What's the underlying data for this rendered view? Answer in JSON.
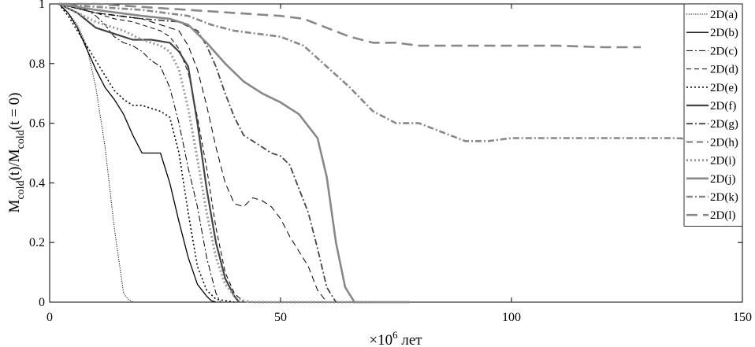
{
  "chart_data": {
    "type": "line",
    "xlabel": {
      "prefix": "×10",
      "sup": "6",
      "suffix": " лет"
    },
    "ylabel": {
      "main": "M",
      "sub1": "cold",
      "mid": "(t)/M",
      "sub2": "cold",
      "tail": "(t = 0)"
    },
    "xlim": [
      0,
      150
    ],
    "ylim": [
      0,
      1
    ],
    "xticks": [
      0,
      50,
      100,
      150
    ],
    "yticks": [
      0,
      0.2,
      0.4,
      0.6,
      0.8,
      1
    ],
    "xtick_labels": [
      "0",
      "50",
      "100",
      "150"
    ],
    "ytick_labels": [
      "0",
      "0.2",
      "0.4",
      "0.6",
      "0.8",
      "1"
    ],
    "grid": false,
    "legend_position": "top-right",
    "series": [
      {
        "name": "2D(a)",
        "color": "#000000",
        "dash": "dotted-fine",
        "width": 1,
        "x": [
          2,
          4,
          6,
          8,
          10,
          12,
          14,
          16,
          17,
          18,
          20,
          30,
          40,
          44
        ],
        "y": [
          1,
          0.97,
          0.93,
          0.86,
          0.72,
          0.52,
          0.25,
          0.03,
          0.01,
          0,
          0,
          0,
          0,
          0
        ]
      },
      {
        "name": "2D(b)",
        "color": "#000000",
        "dash": "solid",
        "width": 1.3,
        "x": [
          2,
          4,
          6,
          8,
          10,
          12,
          14,
          16,
          18,
          20,
          22,
          24,
          26,
          28,
          30,
          32,
          34,
          35,
          36
        ],
        "y": [
          1,
          0.97,
          0.92,
          0.85,
          0.78,
          0.72,
          0.68,
          0.63,
          0.56,
          0.5,
          0.5,
          0.5,
          0.4,
          0.27,
          0.15,
          0.06,
          0.02,
          0.005,
          0
        ]
      },
      {
        "name": "2D(c)",
        "color": "#000000",
        "dash": "dashdot",
        "width": 1,
        "x": [
          2,
          5,
          8,
          10,
          12,
          14,
          16,
          18,
          20,
          22,
          24,
          26,
          28,
          30,
          32,
          34,
          36,
          37
        ],
        "y": [
          1,
          0.99,
          0.98,
          0.96,
          0.93,
          0.89,
          0.87,
          0.86,
          0.84,
          0.81,
          0.79,
          0.72,
          0.6,
          0.45,
          0.32,
          0.15,
          0.03,
          0
        ]
      },
      {
        "name": "2D(d)",
        "color": "#000000",
        "dash": "dashed",
        "width": 1,
        "x": [
          2,
          10,
          14,
          18,
          20,
          22,
          24,
          26,
          28,
          30,
          32,
          34,
          36,
          38,
          40,
          42
        ],
        "y": [
          1,
          0.97,
          0.95,
          0.94,
          0.93,
          0.92,
          0.91,
          0.89,
          0.85,
          0.77,
          0.62,
          0.45,
          0.25,
          0.1,
          0.03,
          0
        ]
      },
      {
        "name": "2D(e)",
        "color": "#000000",
        "dash": "dotted-bold",
        "width": 1.6,
        "x": [
          2,
          4,
          6,
          8,
          10,
          12,
          14,
          16,
          18,
          20,
          22,
          24,
          26,
          28,
          30,
          32,
          34,
          36,
          38,
          40
        ],
        "y": [
          1,
          0.96,
          0.91,
          0.86,
          0.81,
          0.76,
          0.71,
          0.68,
          0.66,
          0.66,
          0.65,
          0.64,
          0.62,
          0.5,
          0.3,
          0.12,
          0.04,
          0.01,
          0.005,
          0
        ]
      },
      {
        "name": "2D(f)",
        "color": "#444444",
        "dash": "solid",
        "width": 2.2,
        "x": [
          2,
          6,
          10,
          14,
          18,
          22,
          26,
          28,
          30,
          32,
          34,
          36,
          38,
          40,
          41
        ],
        "y": [
          1,
          0.97,
          0.92,
          0.9,
          0.88,
          0.88,
          0.87,
          0.84,
          0.79,
          0.6,
          0.38,
          0.2,
          0.08,
          0.02,
          0
        ]
      },
      {
        "name": "2D(g)",
        "color": "#444444",
        "dash": "dashdot",
        "width": 1.8,
        "x": [
          2,
          10,
          20,
          28,
          32,
          34,
          36,
          38,
          40,
          42,
          44,
          46,
          48,
          50,
          52,
          54,
          56,
          58,
          60,
          62
        ],
        "y": [
          1,
          0.97,
          0.95,
          0.94,
          0.91,
          0.86,
          0.79,
          0.7,
          0.62,
          0.56,
          0.54,
          0.52,
          0.5,
          0.49,
          0.46,
          0.38,
          0.3,
          0.18,
          0.05,
          0
        ]
      },
      {
        "name": "2D(h)",
        "color": "#000000",
        "dash": "longdash",
        "width": 1,
        "x": [
          2,
          10,
          20,
          28,
          30,
          32,
          34,
          36,
          38,
          40,
          42,
          44,
          46,
          48,
          50,
          52,
          54,
          56,
          58,
          60
        ],
        "y": [
          1,
          0.97,
          0.95,
          0.91,
          0.86,
          0.78,
          0.66,
          0.52,
          0.4,
          0.33,
          0.32,
          0.35,
          0.34,
          0.32,
          0.28,
          0.22,
          0.17,
          0.12,
          0.04,
          0
        ]
      },
      {
        "name": "2D(i)",
        "color": "#999999",
        "dash": "dotted-bold",
        "width": 3,
        "x": [
          2,
          10,
          16,
          20,
          24,
          26,
          28,
          30,
          32,
          34,
          36,
          38,
          40,
          42,
          44,
          50,
          60,
          70
        ],
        "y": [
          1,
          0.94,
          0.91,
          0.88,
          0.86,
          0.84,
          0.78,
          0.65,
          0.48,
          0.3,
          0.15,
          0.06,
          0.02,
          0.005,
          0,
          0,
          0,
          0
        ]
      },
      {
        "name": "2D(j)",
        "color": "#888888",
        "dash": "solid",
        "width": 2.6,
        "x": [
          2,
          10,
          20,
          26,
          30,
          34,
          38,
          42,
          46,
          50,
          54,
          58,
          60,
          62,
          64,
          66,
          70,
          78
        ],
        "y": [
          1,
          0.98,
          0.96,
          0.95,
          0.93,
          0.87,
          0.8,
          0.74,
          0.7,
          0.67,
          0.63,
          0.55,
          0.42,
          0.2,
          0.05,
          0,
          0,
          0
        ]
      },
      {
        "name": "2D(k)",
        "color": "#888888",
        "dash": "dashdot",
        "width": 2.6,
        "x": [
          2,
          10,
          20,
          30,
          35,
          40,
          45,
          50,
          55,
          60,
          65,
          70,
          75,
          80,
          85,
          90,
          95,
          100,
          110,
          120,
          128,
          135,
          143,
          150
        ],
        "y": [
          1,
          0.99,
          0.98,
          0.96,
          0.93,
          0.91,
          0.9,
          0.89,
          0.86,
          0.79,
          0.72,
          0.64,
          0.6,
          0.6,
          0.57,
          0.54,
          0.54,
          0.55,
          0.55,
          0.55,
          0.55,
          0.55,
          0.545,
          0.55
        ]
      },
      {
        "name": "2D(l)",
        "color": "#888888",
        "dash": "longdash-bold",
        "width": 2.6,
        "x": [
          2,
          10,
          20,
          30,
          40,
          50,
          55,
          60,
          65,
          70,
          75,
          80,
          90,
          100,
          110,
          120,
          128
        ],
        "y": [
          1,
          1,
          0.99,
          0.98,
          0.97,
          0.96,
          0.95,
          0.92,
          0.89,
          0.87,
          0.87,
          0.86,
          0.86,
          0.86,
          0.86,
          0.855,
          0.855
        ]
      }
    ]
  }
}
